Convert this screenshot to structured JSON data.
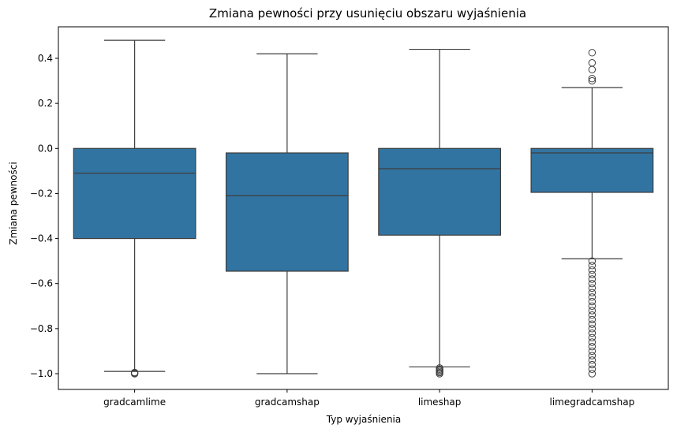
{
  "chart_data": {
    "type": "box",
    "title": "Zmiana pewności przy usunięciu obszaru wyjaśnienia",
    "xlabel": "Typ wyjaśnienia",
    "ylabel": "Zmiana pewności",
    "ylim": [
      -1.07,
      0.54
    ],
    "yticks": [
      -1.0,
      -0.8,
      -0.6,
      -0.4,
      -0.2,
      0.0,
      0.2,
      0.4
    ],
    "ytick_labels": [
      "−1.0",
      "−0.8",
      "−0.6",
      "−0.4",
      "−0.2",
      "0.0",
      "0.2",
      "0.4"
    ],
    "categories": [
      "gradcamlime",
      "gradcamshap",
      "limeshap",
      "limegradcamshap"
    ],
    "boxes": [
      {
        "category": "gradcamlime",
        "whisker_low": -0.99,
        "q1": -0.4,
        "median": -0.11,
        "q3": 0.0,
        "whisker_high": 0.48,
        "outliers": [
          -0.995,
          -1.0,
          -0.998
        ]
      },
      {
        "category": "gradcamshap",
        "whisker_low": -1.0,
        "q1": -0.545,
        "median": -0.21,
        "q3": -0.02,
        "whisker_high": 0.42,
        "outliers": []
      },
      {
        "category": "limeshap",
        "whisker_low": -0.97,
        "q1": -0.385,
        "median": -0.09,
        "q3": 0.0,
        "whisker_high": 0.44,
        "outliers": [
          -0.975,
          -0.98,
          -0.985,
          -0.99,
          -0.995,
          -1.0
        ]
      },
      {
        "category": "limegradcamshap",
        "whisker_low": -0.49,
        "q1": -0.195,
        "median": -0.02,
        "q3": 0.0,
        "whisker_high": 0.27,
        "outliers": [
          0.3,
          0.31,
          0.35,
          0.38,
          0.425,
          -0.5,
          -0.52,
          -0.54,
          -0.56,
          -0.58,
          -0.6,
          -0.62,
          -0.64,
          -0.66,
          -0.68,
          -0.7,
          -0.72,
          -0.74,
          -0.76,
          -0.78,
          -0.8,
          -0.82,
          -0.84,
          -0.86,
          -0.88,
          -0.9,
          -0.92,
          -0.94,
          -0.96,
          -0.98,
          -1.0
        ]
      }
    ],
    "box_color": "#3274a1",
    "grid": false
  }
}
